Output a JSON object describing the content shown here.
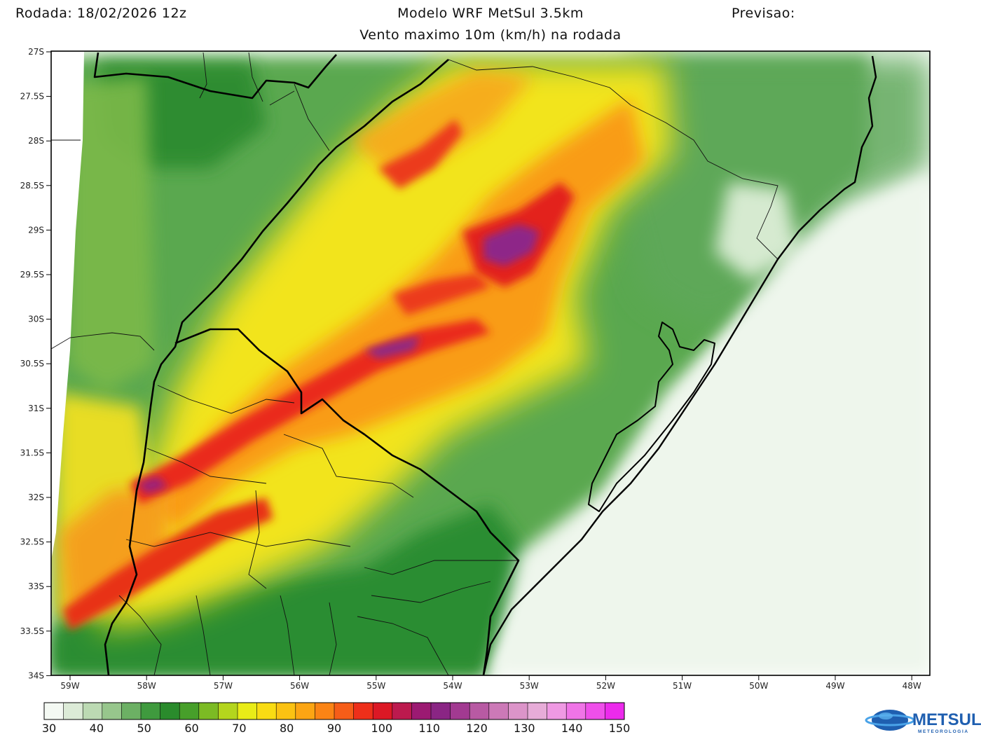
{
  "header": {
    "run": "Rodada: 18/02/2026 12z",
    "model": "Modelo WRF MetSul 3.5km",
    "forecast": "Previsao:",
    "subtitle": "Vento maximo 10m (km/h) na rodada"
  },
  "map": {
    "lat_labels": [
      "27S",
      "27.5S",
      "28S",
      "28.5S",
      "29S",
      "29.5S",
      "30S",
      "30.5S",
      "31S",
      "31.5S",
      "32S",
      "32.5S",
      "33S",
      "33.5S",
      "34S"
    ],
    "lon_labels": [
      "59W",
      "58W",
      "57W",
      "56W",
      "55W",
      "54W",
      "53W",
      "52W",
      "51W",
      "50W",
      "49W",
      "48W"
    ]
  },
  "colorbar": {
    "labels": [
      "30",
      "40",
      "50",
      "60",
      "70",
      "80",
      "90",
      "100",
      "110",
      "120",
      "130",
      "140",
      "150"
    ],
    "colors": [
      "#f4f9f3",
      "#dcebd7",
      "#bcdab3",
      "#97c68c",
      "#6cb064",
      "#3f9a3e",
      "#2a8b2c",
      "#479f2a",
      "#7cbb24",
      "#b4d51d",
      "#e9ec17",
      "#f9dc13",
      "#fbc212",
      "#fca513",
      "#fb8415",
      "#f65d18",
      "#ee2f1a",
      "#dc1825",
      "#bc1a4e",
      "#9c1a72",
      "#8a2584",
      "#a23a91",
      "#b85aa3",
      "#cc79b7",
      "#dc94c9",
      "#e7acd8",
      "#ef99e3",
      "#f074e7",
      "#ef4fea",
      "#ec2aec"
    ],
    "brand": "METSUL",
    "brand_sub": "METEOROLOGIA"
  }
}
